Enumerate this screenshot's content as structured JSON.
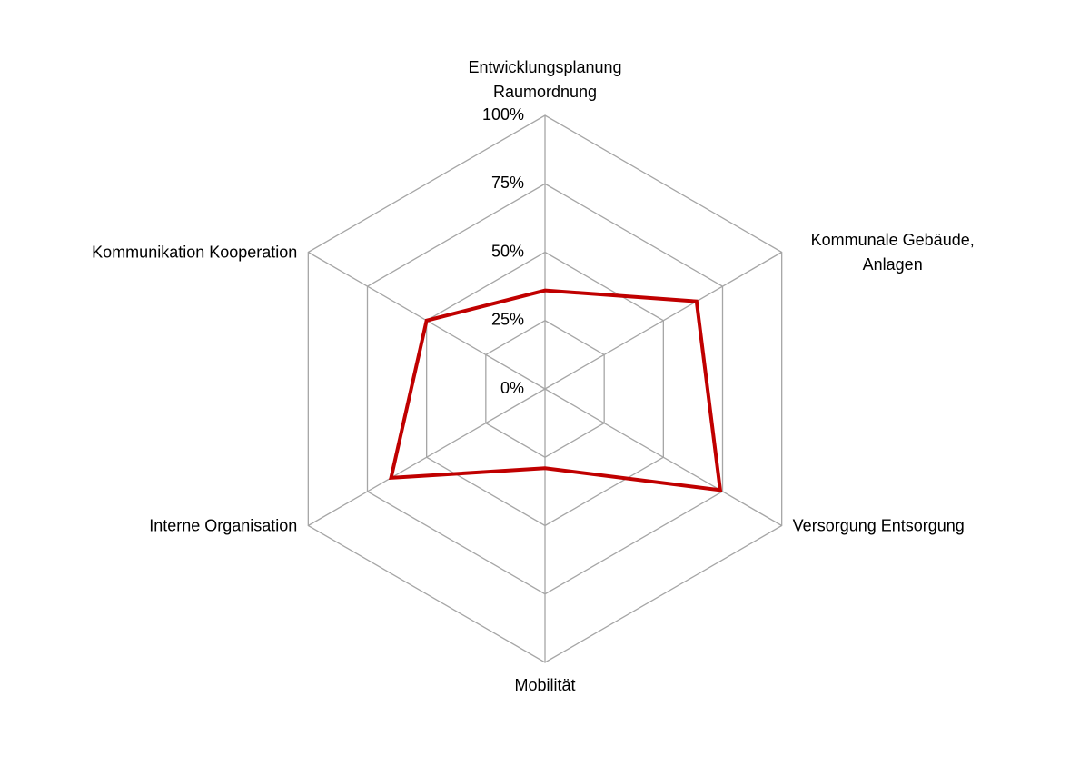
{
  "chart_data": {
    "type": "radar",
    "categories": [
      "Entwicklungsplanung Raumordnung",
      "Kommunale Gebäude, Anlagen",
      "Versorgung Entsorgung",
      "Mobilität",
      "Interne Organisation",
      "Kommunikation Kooperation"
    ],
    "series": [
      {
        "color": "#c00000",
        "values": [
          36,
          64,
          74,
          29,
          65,
          50
        ]
      }
    ],
    "ylim": [
      0,
      100
    ],
    "yticks": [
      {
        "value": 0,
        "label": "0%"
      },
      {
        "value": 25,
        "label": "25%"
      },
      {
        "value": 50,
        "label": "50%"
      },
      {
        "value": 75,
        "label": "75%"
      },
      {
        "value": 100,
        "label": "100%"
      }
    ],
    "grid": true
  }
}
